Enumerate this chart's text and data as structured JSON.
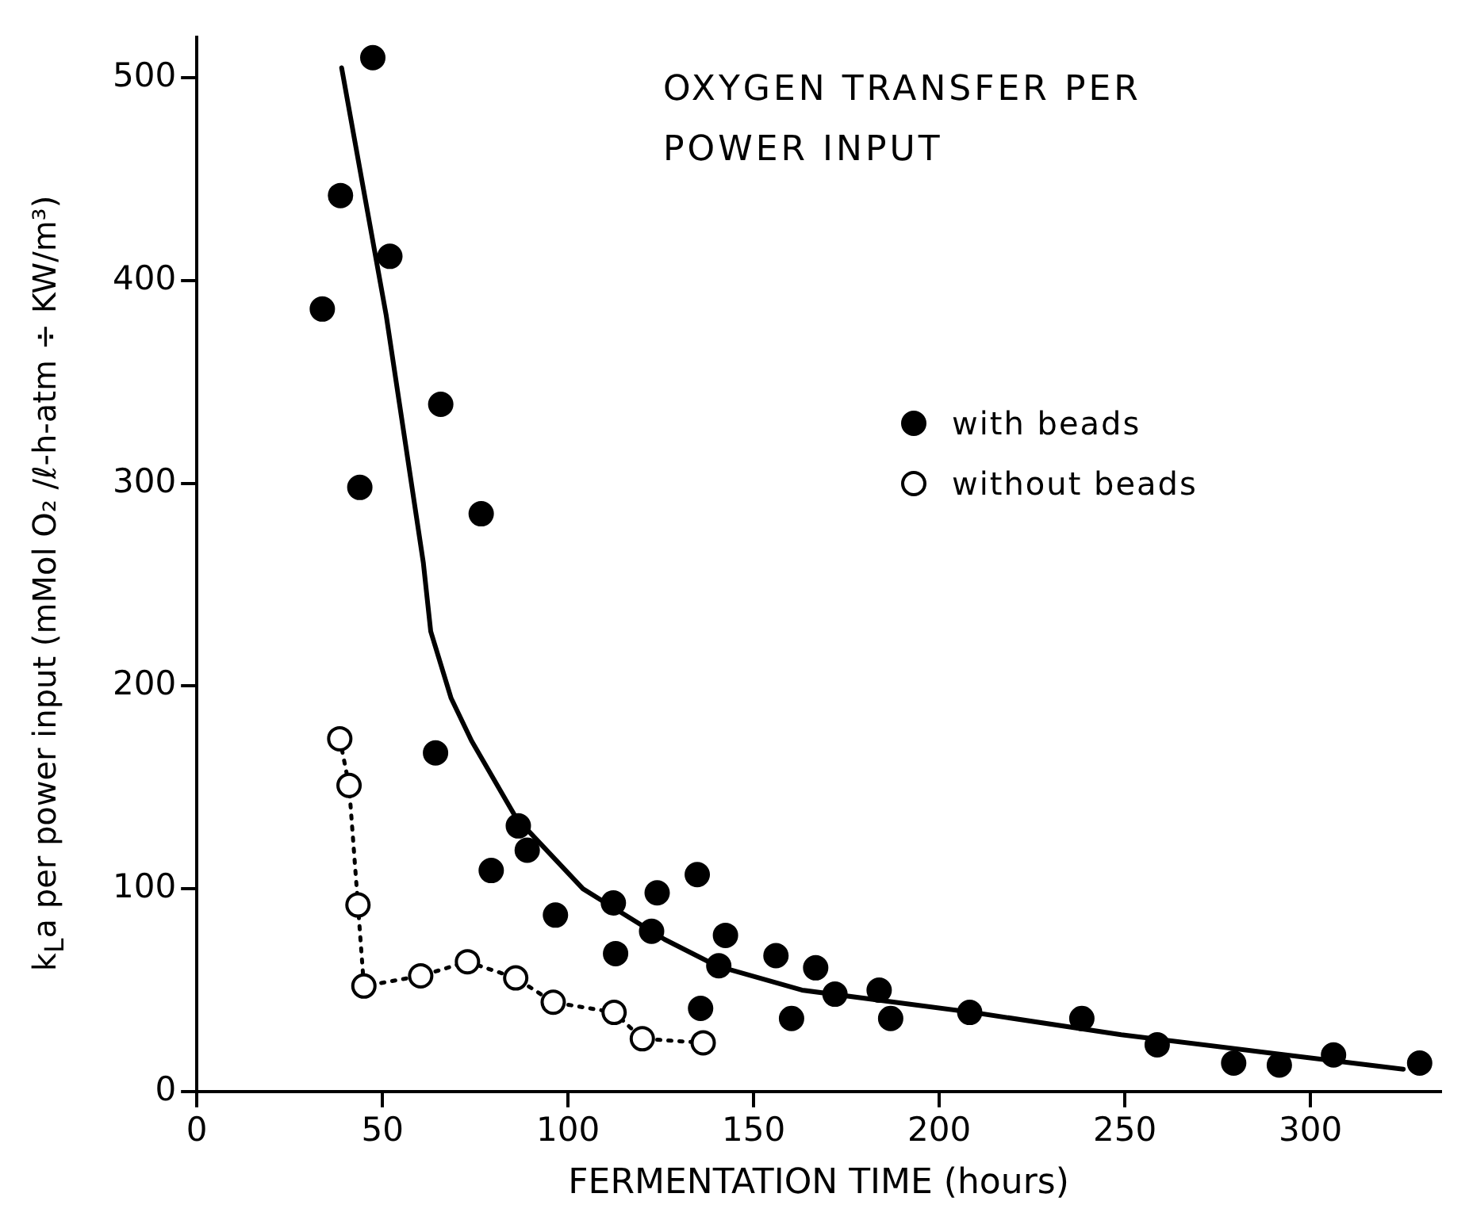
{
  "chart_data": {
    "type": "scatter",
    "title": "OXYGEN TRANSFER PER POWER INPUT",
    "xlabel": "FERMENTATION TIME (hours)",
    "ylabel": "k$_{L}$a per power input (mMol O₂ /ℓ-h-atm ÷ KW/m³)",
    "xlim": [
      0,
      335
    ],
    "xticks": [
      0,
      50,
      100,
      150,
      200,
      250,
      300
    ],
    "ylim": [
      0,
      520
    ],
    "yticks": [
      0,
      100,
      200,
      300,
      400,
      500
    ],
    "grid": false,
    "legend": "right",
    "series": [
      {
        "name": "with beads",
        "type": "scatter",
        "marker": "circle",
        "color": "#000000",
        "x": [
          47.4,
          38.7,
          52,
          33.8,
          65.7,
          43.9,
          76.6,
          64.3,
          86.6,
          89,
          79.3,
          96.6,
          112.2,
          112.8,
          124,
          122.5,
          134.8,
          142.4,
          140.6,
          135.7,
          156,
          160.2,
          166.7,
          171.9,
          183.8,
          186.9,
          208.2,
          238.4,
          258.7,
          279.3,
          291.6,
          306.2,
          329.4
        ],
        "values": [
          510,
          442,
          412,
          386,
          339,
          298,
          285,
          167,
          131,
          119,
          109,
          87,
          93,
          68,
          98,
          79,
          107,
          77,
          62,
          41,
          67,
          36,
          61,
          48,
          50,
          36,
          39,
          36,
          23,
          14,
          13,
          18,
          14
        ]
      },
      {
        "name": "without beads",
        "type": "line",
        "marker": "circle",
        "line_style": "dotted",
        "color": "#000000",
        "x": [
          38.5,
          41,
          43.4,
          45,
          60.3,
          72.9,
          85.9,
          96,
          112.4,
          120,
          136.4
        ],
        "values": [
          174,
          151,
          92,
          52,
          57,
          64,
          56,
          44,
          39,
          26,
          24
        ]
      },
      {
        "type": "line",
        "marker": "none",
        "line_style": "solid",
        "color": "#000000",
        "x": [
          39,
          51,
          61,
          63,
          68.5,
          74,
          86,
          104,
          126,
          140,
          163,
          209,
          249,
          289,
          325
        ],
        "values": [
          505,
          383,
          261,
          227,
          194,
          173,
          135,
          100,
          75,
          62,
          50,
          39,
          28,
          19,
          11
        ]
      }
    ]
  }
}
